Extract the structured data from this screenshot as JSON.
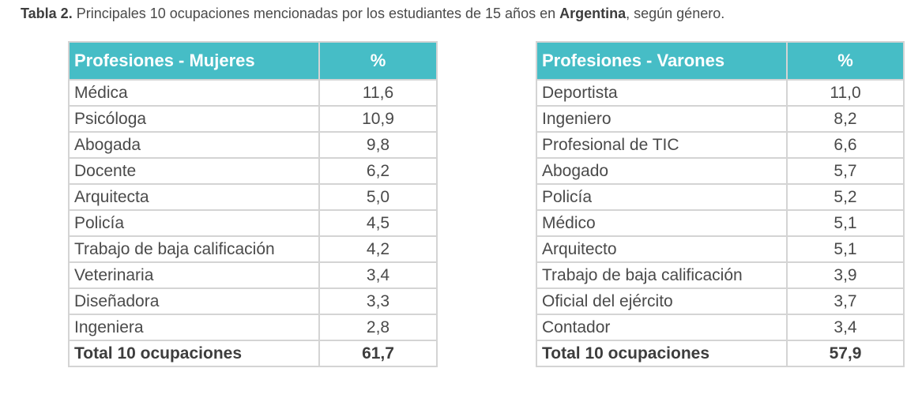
{
  "caption": {
    "label": "Tabla 2.",
    "text_a": " Principales 10 ocupaciones mencionadas por los estudiantes de 15 años en ",
    "country": "Argentina",
    "text_b": ", según género."
  },
  "women": {
    "header_name": "Profesiones - Mujeres",
    "header_pct": "%",
    "rows": [
      {
        "name": "Médica",
        "pct": "11,6"
      },
      {
        "name": "Psicóloga",
        "pct": "10,9"
      },
      {
        "name": "Abogada",
        "pct": "9,8"
      },
      {
        "name": "Docente",
        "pct": "6,2"
      },
      {
        "name": "Arquitecta",
        "pct": "5,0"
      },
      {
        "name": "Policía",
        "pct": "4,5"
      },
      {
        "name": "Trabajo de baja calificación",
        "pct": "4,2"
      },
      {
        "name": "Veterinaria",
        "pct": "3,4"
      },
      {
        "name": "Diseñadora",
        "pct": "3,3"
      },
      {
        "name": "Ingeniera",
        "pct": "2,8"
      }
    ],
    "total": {
      "name": "Total 10 ocupaciones",
      "pct": "61,7"
    }
  },
  "men": {
    "header_name": "Profesiones - Varones",
    "header_pct": "%",
    "rows": [
      {
        "name": "Deportista",
        "pct": "11,0"
      },
      {
        "name": "Ingeniero",
        "pct": "8,2"
      },
      {
        "name": "Profesional de TIC",
        "pct": "6,6"
      },
      {
        "name": "Abogado",
        "pct": "5,7"
      },
      {
        "name": "Policía",
        "pct": "5,2"
      },
      {
        "name": "Médico",
        "pct": "5,1"
      },
      {
        "name": "Arquitecto",
        "pct": "5,1"
      },
      {
        "name": "Trabajo de baja calificación",
        "pct": "3,9"
      },
      {
        "name": "Oficial del ejército",
        "pct": "3,7"
      },
      {
        "name": "Contador",
        "pct": "3,4"
      }
    ],
    "total": {
      "name": "Total 10 ocupaciones",
      "pct": "57,9"
    }
  }
}
